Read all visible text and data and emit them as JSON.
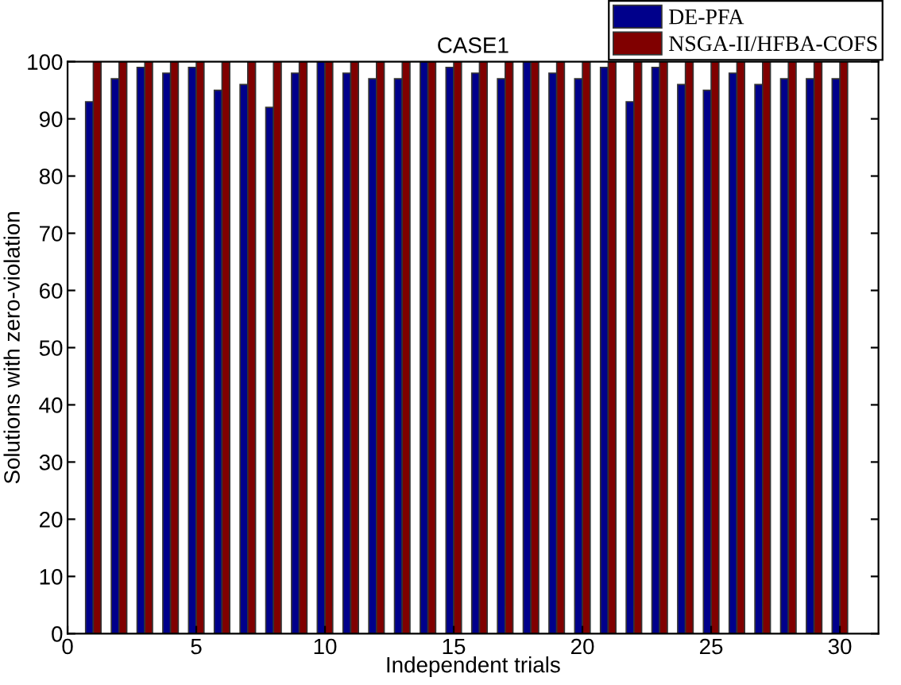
{
  "chart_data": {
    "type": "bar",
    "title": "CASE1",
    "xlabel": "Independent trials",
    "ylabel": "Solutions with zero-violation",
    "x": [
      1,
      2,
      3,
      4,
      5,
      6,
      7,
      8,
      9,
      10,
      11,
      12,
      13,
      14,
      15,
      16,
      17,
      18,
      19,
      20,
      21,
      22,
      23,
      24,
      25,
      26,
      27,
      28,
      29,
      30
    ],
    "series": [
      {
        "name": "DE-PFA",
        "color": "#00008b",
        "values": [
          93,
          97,
          99,
          98,
          99,
          95,
          96,
          92,
          98,
          100,
          98,
          97,
          97,
          100,
          99,
          98,
          97,
          100,
          98,
          97,
          99,
          93,
          99,
          96,
          95,
          98,
          96,
          97,
          97,
          97
        ]
      },
      {
        "name": "NSGA-II/HFBA-COFS",
        "color": "#800000",
        "values": [
          100,
          100,
          100,
          100,
          100,
          100,
          100,
          100,
          100,
          100,
          100,
          100,
          100,
          100,
          100,
          100,
          100,
          100,
          100,
          100,
          100,
          100,
          100,
          100,
          100,
          100,
          100,
          100,
          100,
          100
        ]
      }
    ],
    "xlim": [
      0,
      31.5
    ],
    "xticks": [
      0,
      5,
      10,
      15,
      20,
      25,
      30
    ],
    "ylim": [
      0,
      100
    ],
    "yticks": [
      0,
      10,
      20,
      30,
      40,
      50,
      60,
      70,
      80,
      90,
      100
    ],
    "grid": false,
    "legend": "top right"
  }
}
